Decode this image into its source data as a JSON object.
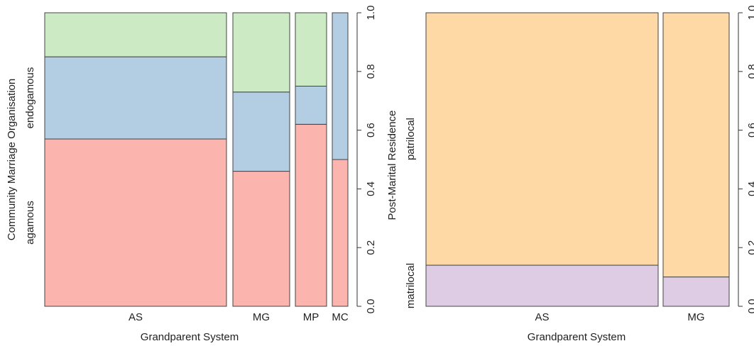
{
  "chart_data": [
    {
      "type": "mosaic",
      "xlabel": "Grandparent System",
      "ylabel": "Community Marriage Organisation",
      "ylim": [
        0,
        1
      ],
      "yticks": [
        "0.0",
        "0.2",
        "0.4",
        "0.6",
        "0.8",
        "1.0"
      ],
      "y_levels": [
        "agamous",
        "endogamous"
      ],
      "categories": [
        "AS",
        "MG",
        "MP",
        "MC"
      ],
      "column_shares": [
        0.6,
        0.2,
        0.1,
        0.045
      ],
      "segments": [
        {
          "name": "agamous",
          "color": "#FBB4AE",
          "values": [
            0.57,
            0.46,
            0.62,
            0.5
          ]
        },
        {
          "name": "endogamous",
          "color": "#B3CDE3",
          "values": [
            0.28,
            0.27,
            0.13,
            0.5
          ]
        },
        {
          "name": "",
          "color": "#CCEBC5",
          "values": [
            0.15,
            0.27,
            0.25,
            0.0
          ]
        }
      ]
    },
    {
      "type": "mosaic",
      "xlabel": "Grandparent System",
      "ylabel": "Post-Marital Residence",
      "ylim": [
        0,
        1
      ],
      "yticks": [
        "0.0",
        "0.2",
        "0.4",
        "0.6",
        "0.8",
        "1.0"
      ],
      "y_levels": [
        "matrilocal",
        "patrilocal"
      ],
      "categories": [
        "AS",
        "MG"
      ],
      "column_shares": [
        0.8,
        0.2
      ],
      "segments": [
        {
          "name": "matrilocal",
          "color": "#DECBE4",
          "values": [
            0.14,
            0.1
          ]
        },
        {
          "name": "patrilocal",
          "color": "#FED9A6",
          "values": [
            0.86,
            0.9
          ]
        }
      ]
    }
  ]
}
